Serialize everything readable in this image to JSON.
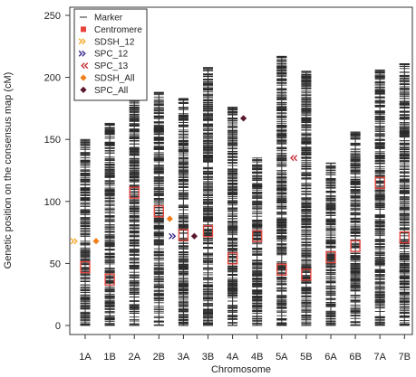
{
  "chart_data": {
    "type": "scatter",
    "title": "",
    "xlabel": "Chromosome",
    "ylabel": "Genetic position on the consensus map (cM)",
    "ylim": [
      0,
      250
    ],
    "yticks": [
      0,
      50,
      100,
      150,
      200,
      250
    ],
    "categories": [
      "1A",
      "1B",
      "2A",
      "2B",
      "3A",
      "3B",
      "4A",
      "4B",
      "5A",
      "5B",
      "6A",
      "6B",
      "7A",
      "7B"
    ],
    "chromosome_extent_cM": [
      150,
      163,
      210,
      188,
      183,
      208,
      176,
      135,
      217,
      205,
      131,
      156,
      206,
      211
    ],
    "centromere_cM": [
      47,
      37,
      107,
      92,
      73,
      76,
      54,
      72,
      45,
      41,
      55,
      64,
      115,
      71
    ],
    "series": [
      {
        "name": "Marker",
        "marker": "dash",
        "color": "#2b2b2b",
        "values": "dense marker ticks spanning each chromosome extent"
      },
      {
        "name": "Centromere",
        "marker": "square-open",
        "color": "#e8423a",
        "values": [
          47,
          37,
          107,
          92,
          73,
          76,
          54,
          72,
          45,
          41,
          55,
          64,
          115,
          71
        ]
      },
      {
        "name": "SDSH_12",
        "marker": "chevron-right",
        "color": "#f5a623",
        "points": [
          {
            "x": "1A",
            "y": 68
          }
        ]
      },
      {
        "name": "SPC_12",
        "marker": "chevron-right",
        "color": "#3a2a8c",
        "points": [
          {
            "x": "3A",
            "y": 72
          }
        ]
      },
      {
        "name": "SPC_13",
        "marker": "chevron-left",
        "color": "#c8313a",
        "points": [
          {
            "x": "5A",
            "y": 135
          }
        ]
      },
      {
        "name": "SDSH_All",
        "marker": "diamond",
        "color": "#f07f1a",
        "points": [
          {
            "x": "1A",
            "y": 68
          },
          {
            "x": "2B",
            "y": 86
          }
        ]
      },
      {
        "name": "SPC_All",
        "marker": "diamond",
        "color": "#5a1a2e",
        "points": [
          {
            "x": "3A",
            "y": 72
          },
          {
            "x": "4A",
            "y": 167
          }
        ]
      }
    ],
    "legend": {
      "placement": "top-left",
      "entries": [
        {
          "label": "Marker",
          "symbol": "dash",
          "color": "#2b2b2b"
        },
        {
          "label": "Centromere",
          "symbol": "square",
          "color": "#e8423a"
        },
        {
          "label": "SDSH_12",
          "symbol": "chevron-right",
          "color": "#f5a623"
        },
        {
          "label": "SPC_12",
          "symbol": "chevron-right",
          "color": "#3a2a8c"
        },
        {
          "label": "SPC_13",
          "symbol": "chevron-left",
          "color": "#c8313a"
        },
        {
          "label": "SDSH_All",
          "symbol": "diamond",
          "color": "#f07f1a"
        },
        {
          "label": "SPC_All",
          "symbol": "diamond",
          "color": "#5a1a2e"
        }
      ]
    },
    "grid": false
  }
}
